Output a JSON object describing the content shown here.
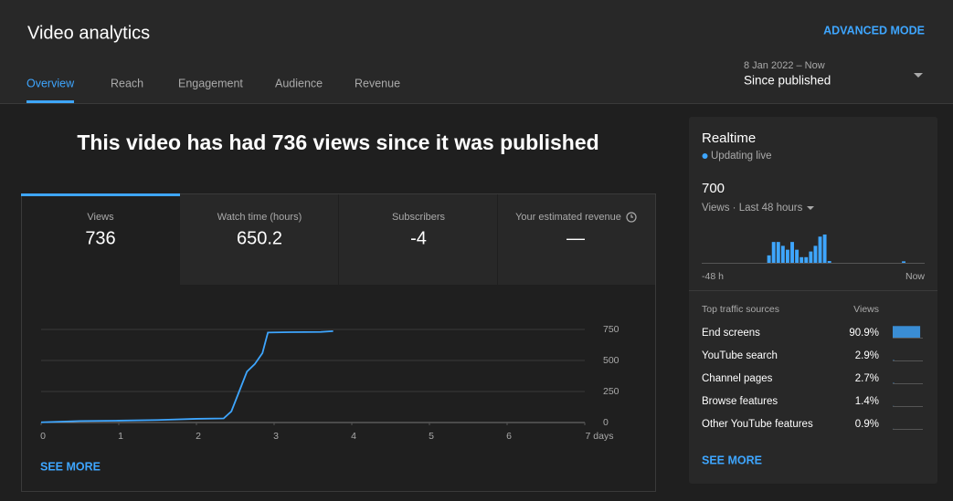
{
  "header": {
    "title": "Video analytics",
    "advanced_mode": "ADVANCED MODE"
  },
  "tabs": [
    "Overview",
    "Reach",
    "Engagement",
    "Audience",
    "Revenue"
  ],
  "date_range": {
    "range": "8 Jan 2022 – Now",
    "label": "Since published"
  },
  "headline": "This video has had 736 views since it was published",
  "metrics": [
    {
      "label": "Views",
      "value": 736
    },
    {
      "label": "Watch time (hours)",
      "value": 650.2
    },
    {
      "label": "Subscribers",
      "value": -4
    },
    {
      "label": "Your estimated revenue",
      "value": "—"
    }
  ],
  "chart": {
    "type": "line",
    "color": "#3ea6ff",
    "x": [
      0,
      0.5,
      1,
      1.5,
      2,
      2.35,
      2.45,
      2.55,
      2.65,
      2.75,
      2.85,
      2.92,
      3.2,
      3.6,
      3.76
    ],
    "values": [
      2,
      12,
      15,
      20,
      30,
      33,
      90,
      250,
      410,
      470,
      560,
      725,
      728,
      730,
      736
    ],
    "xlim": [
      0,
      7
    ],
    "xticks": [
      0,
      1,
      2,
      3,
      4,
      5,
      6,
      {
        "value": 7,
        "label": "7 days"
      }
    ],
    "ylim": [
      0,
      750
    ],
    "yticks": [
      0,
      250,
      500,
      750
    ],
    "grid": true
  },
  "see_more": "SEE MORE",
  "realtime": {
    "title": "Realtime",
    "status": "Updating live",
    "count": 700,
    "period": "Views · Last 48 hours",
    "chart": {
      "type": "bar",
      "color": "#3ea6ff",
      "values": [
        0,
        0,
        0,
        0,
        0,
        0,
        0,
        0,
        0,
        0,
        0,
        0,
        0,
        0,
        25,
        70,
        70,
        57,
        44,
        70,
        44,
        19,
        19,
        38,
        57,
        88,
        95,
        6,
        0,
        0,
        0,
        0,
        0,
        0,
        0,
        0,
        0,
        0,
        0,
        0,
        0,
        0,
        0,
        5,
        0,
        0,
        0,
        0
      ],
      "start_label": "-48 h",
      "end_label": "Now"
    },
    "traffic": {
      "heading": "Top traffic sources",
      "column": "Views",
      "rows": [
        "End screens",
        "YouTube search",
        "Channel pages",
        "Browse features",
        "Other YouTube features"
      ],
      "values": [
        90.9,
        2.9,
        2.7,
        1.4,
        0.9
      ],
      "value_labels": [
        "90.9%",
        "2.9%",
        "2.7%",
        "1.4%",
        "0.9%"
      ]
    },
    "see_more": "SEE MORE"
  }
}
